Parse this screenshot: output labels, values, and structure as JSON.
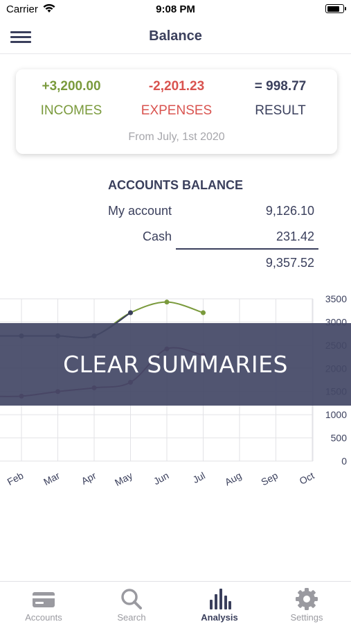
{
  "status_bar": {
    "carrier": "Carrier",
    "time": "9:08 PM",
    "battery_level": 0.85
  },
  "nav": {
    "title": "Balance"
  },
  "summary": {
    "incomes_value": "+3,200.00",
    "incomes_label": "INCOMES",
    "expenses_value": "-2,201.23",
    "expenses_label": "EXPENSES",
    "result_value": "= 998.77",
    "result_label": "RESULT",
    "period": "From July, 1st 2020"
  },
  "accounts": {
    "title": "ACCOUNTS BALANCE",
    "items": [
      {
        "name": "My account",
        "value": "9,126.10"
      },
      {
        "name": "Cash",
        "value": "231.42"
      }
    ],
    "total": "9,357.52"
  },
  "chart_data": {
    "type": "line",
    "categories": [
      "Feb",
      "Mar",
      "Apr",
      "May",
      "Jun",
      "Jul",
      "Aug",
      "Sep",
      "Oct"
    ],
    "ylim": [
      0,
      3500
    ],
    "y_ticks": [
      0,
      500,
      1000,
      1500,
      2000,
      2500,
      3000,
      3500
    ],
    "grid": true,
    "series": [
      {
        "values": [
          2700,
          2700,
          2700,
          3200,
          3430,
          3200,
          null,
          null,
          null
        ],
        "color": "#7a9a3c"
      },
      {
        "values": [
          2700,
          2700,
          2700,
          3200,
          null,
          null,
          null,
          null,
          null
        ],
        "color": "#3a3f5c"
      },
      {
        "values": [
          1400,
          1500,
          1580,
          1700,
          2420,
          2280,
          null,
          null,
          null
        ],
        "color": "#7a2e56"
      }
    ]
  },
  "banner": {
    "text": "CLEAR SUMMARIES"
  },
  "tabs": [
    {
      "label": "Accounts",
      "icon": "card-icon",
      "active": false
    },
    {
      "label": "Search",
      "icon": "search-icon",
      "active": false
    },
    {
      "label": "Analysis",
      "icon": "bar-chart-icon",
      "active": true
    },
    {
      "label": "Settings",
      "icon": "gear-icon",
      "active": false
    }
  ],
  "colors": {
    "primary": "#3a3f5c",
    "income": "#7a9a3c",
    "expense": "#d9534f",
    "muted": "#9a9aa0"
  }
}
